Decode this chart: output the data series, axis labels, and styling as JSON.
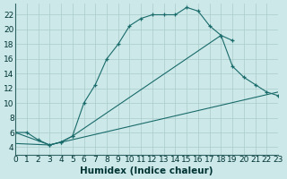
{
  "title": "",
  "xlabel": "Humidex (Indice chaleur)",
  "bg_color": "#cce8e8",
  "grid_color": "#aacccc",
  "line_color": "#1a6b6b",
  "xlim": [
    0,
    23
  ],
  "ylim": [
    3,
    23.5
  ],
  "xticks": [
    0,
    1,
    2,
    3,
    4,
    5,
    6,
    7,
    8,
    9,
    10,
    11,
    12,
    13,
    14,
    15,
    16,
    17,
    18,
    19,
    20,
    21,
    22,
    23
  ],
  "yticks": [
    4,
    6,
    8,
    10,
    12,
    14,
    16,
    18,
    20,
    22
  ],
  "curve1_x": [
    0,
    1,
    2,
    3,
    4,
    5,
    6,
    7,
    8,
    9,
    10,
    11,
    12,
    13,
    14,
    15,
    16,
    17,
    18,
    19
  ],
  "curve1_y": [
    6.0,
    6.0,
    5.0,
    4.3,
    4.7,
    5.5,
    10.0,
    12.5,
    16.0,
    18.0,
    20.5,
    21.5,
    22.0,
    22.0,
    22.0,
    23.0,
    22.5,
    20.5,
    19.2,
    18.5
  ],
  "curve2_x": [
    0,
    3,
    4,
    5,
    18,
    19,
    20,
    21,
    22,
    23
  ],
  "curve2_y": [
    6.0,
    4.3,
    4.7,
    5.5,
    19.2,
    15.0,
    13.5,
    12.5,
    11.5,
    11.0
  ],
  "curve3_x": [
    0,
    3,
    23
  ],
  "curve3_y": [
    4.5,
    4.3,
    11.5
  ],
  "tick_fontsize": 6.5,
  "xlabel_fontsize": 7.5
}
